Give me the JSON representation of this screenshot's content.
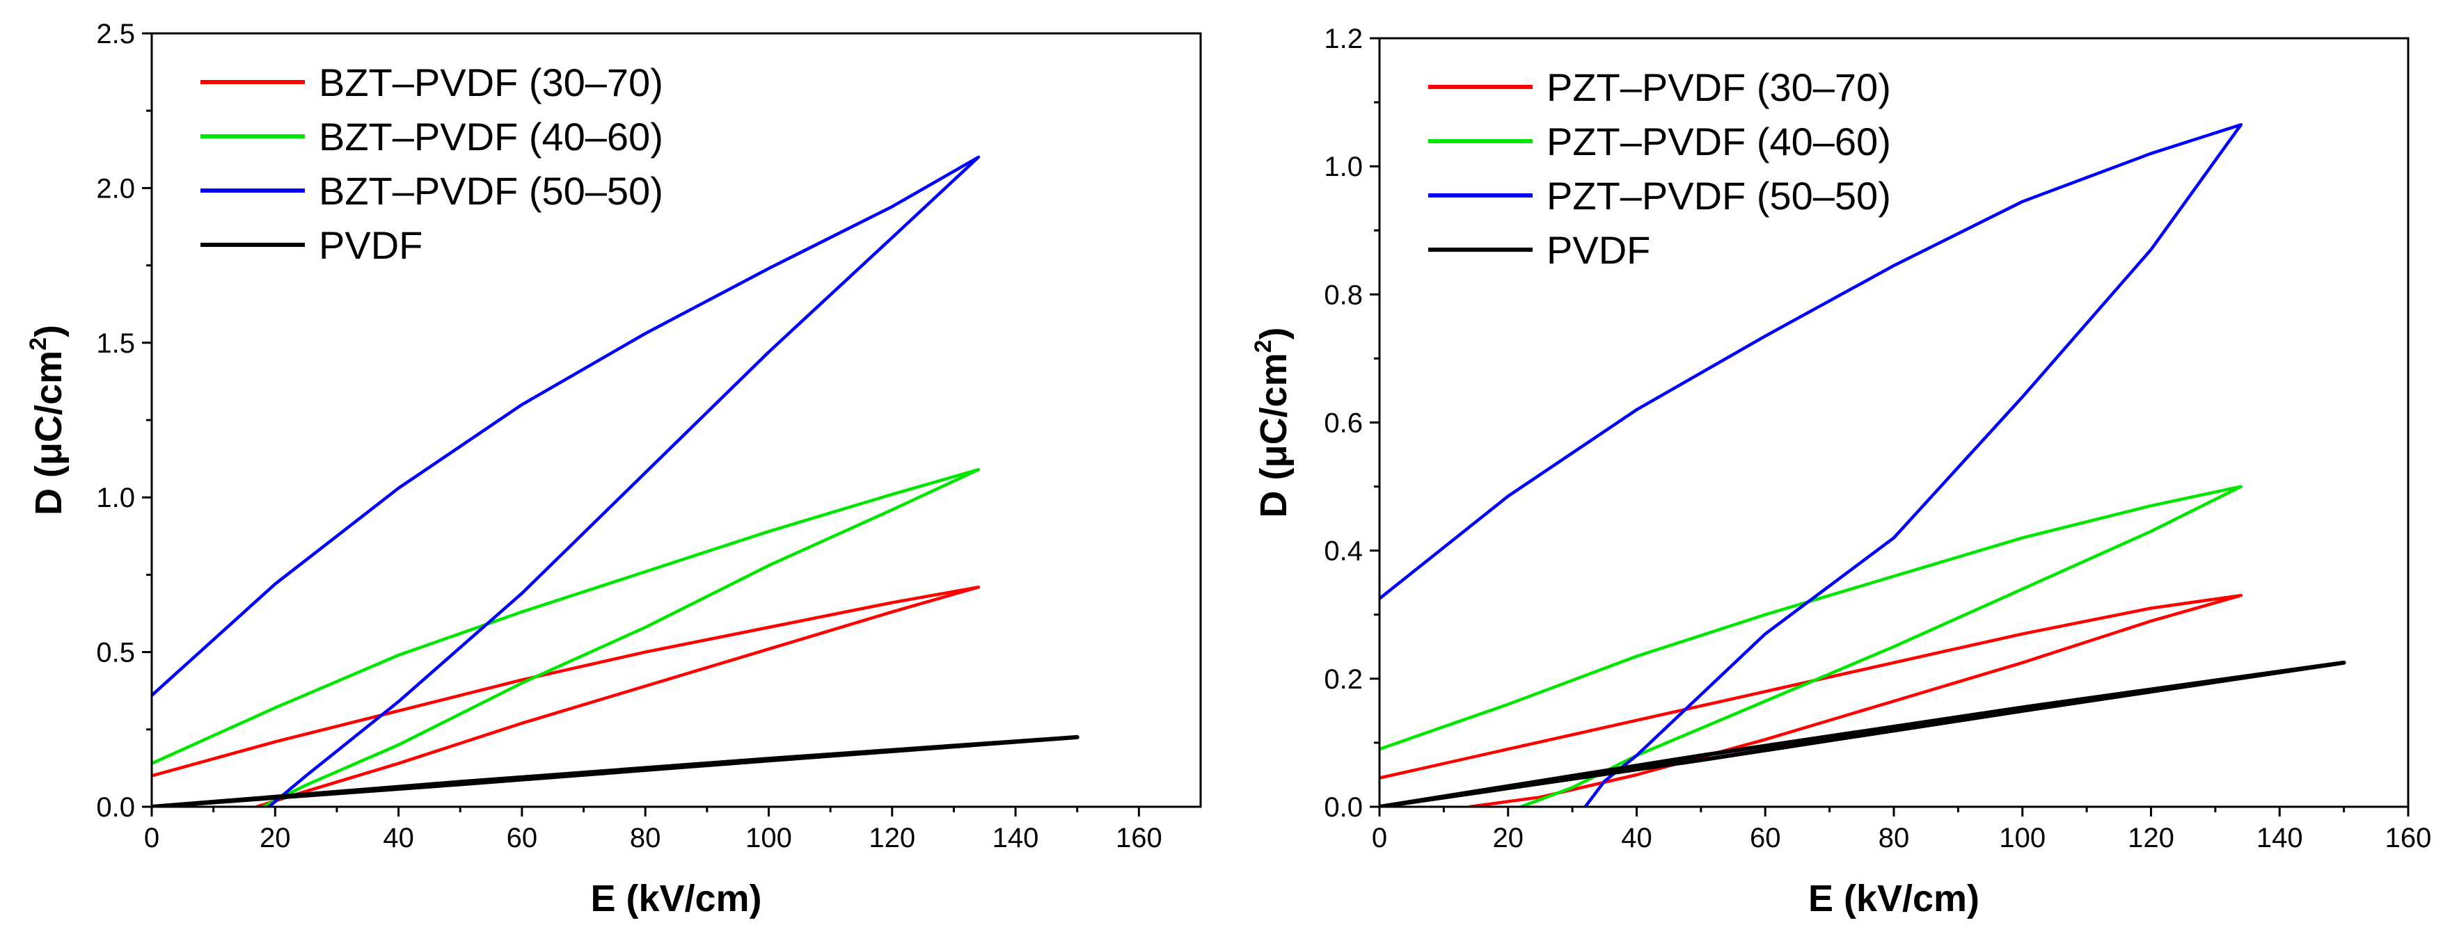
{
  "chart_data": [
    {
      "type": "line",
      "xlabel": "E (kV/cm)",
      "ylabel": "D (μC/cm²)",
      "ylabel_parts": {
        "main": "D (μC/cm",
        "sup": "2",
        "close": ")"
      },
      "xlim": [
        0,
        170
      ],
      "ylim": [
        0,
        2.5
      ],
      "x_ticks": [
        0,
        20,
        40,
        60,
        80,
        100,
        120,
        140,
        160
      ],
      "y_ticks": [
        "0.0",
        "0.5",
        "1.0",
        "1.5",
        "2.0",
        "2.5"
      ],
      "legend_position": "top-left",
      "series": [
        {
          "name": "BZT–PVDF (30–70)",
          "color": "#ff0000",
          "upper": [
            [
              0,
              0.1
            ],
            [
              20,
              0.21
            ],
            [
              40,
              0.31
            ],
            [
              60,
              0.41
            ],
            [
              80,
              0.5
            ],
            [
              100,
              0.58
            ],
            [
              120,
              0.66
            ],
            [
              134,
              0.71
            ]
          ],
          "lower": [
            [
              134,
              0.71
            ],
            [
              120,
              0.63
            ],
            [
              100,
              0.51
            ],
            [
              80,
              0.39
            ],
            [
              60,
              0.27
            ],
            [
              40,
              0.14
            ],
            [
              25,
              0.05
            ],
            [
              17,
              0.0
            ]
          ]
        },
        {
          "name": "BZT–PVDF (40–60)",
          "color": "#00e600",
          "upper": [
            [
              0,
              0.14
            ],
            [
              20,
              0.32
            ],
            [
              40,
              0.49
            ],
            [
              60,
              0.63
            ],
            [
              80,
              0.76
            ],
            [
              100,
              0.89
            ],
            [
              120,
              1.01
            ],
            [
              134,
              1.09
            ]
          ],
          "lower": [
            [
              134,
              1.09
            ],
            [
              120,
              0.96
            ],
            [
              100,
              0.78
            ],
            [
              80,
              0.58
            ],
            [
              60,
              0.4
            ],
            [
              40,
              0.2
            ],
            [
              25,
              0.07
            ],
            [
              18,
              0.0
            ]
          ]
        },
        {
          "name": "BZT–PVDF (50–50)",
          "color": "#0000ff",
          "upper": [
            [
              0,
              0.36
            ],
            [
              20,
              0.72
            ],
            [
              40,
              1.03
            ],
            [
              60,
              1.3
            ],
            [
              80,
              1.53
            ],
            [
              100,
              1.74
            ],
            [
              120,
              1.94
            ],
            [
              134,
              2.1
            ]
          ],
          "lower": [
            [
              134,
              2.1
            ],
            [
              120,
              1.84
            ],
            [
              100,
              1.47
            ],
            [
              80,
              1.08
            ],
            [
              60,
              0.69
            ],
            [
              40,
              0.34
            ],
            [
              25,
              0.1
            ],
            [
              19,
              0.0
            ]
          ]
        },
        {
          "name": "PVDF",
          "color": "#000000",
          "upper": [
            [
              0,
              0.0
            ],
            [
              50,
              0.08
            ],
            [
              100,
              0.155
            ],
            [
              150,
              0.225
            ]
          ],
          "lower": [
            [
              150,
              0.225
            ],
            [
              100,
              0.15
            ],
            [
              50,
              0.073
            ],
            [
              0,
              0.0
            ]
          ]
        }
      ]
    },
    {
      "type": "line",
      "xlabel": "E (kV/cm)",
      "ylabel": "D (μC/cm²)",
      "ylabel_parts": {
        "main": "D (μC/cm",
        "sup": "2",
        "close": ")"
      },
      "xlim": [
        0,
        160
      ],
      "ylim": [
        0,
        1.2
      ],
      "x_ticks": [
        0,
        20,
        40,
        60,
        80,
        100,
        120,
        140,
        160
      ],
      "y_ticks": [
        "0.0",
        "0.2",
        "0.4",
        "0.6",
        "0.8",
        "1.0",
        "1.2"
      ],
      "legend_position": "top-left",
      "series": [
        {
          "name": "PZT–PVDF (30–70)",
          "color": "#ff0000",
          "upper": [
            [
              0,
              0.045
            ],
            [
              20,
              0.09
            ],
            [
              40,
              0.135
            ],
            [
              60,
              0.18
            ],
            [
              80,
              0.225
            ],
            [
              100,
              0.27
            ],
            [
              120,
              0.31
            ],
            [
              134,
              0.33
            ]
          ],
          "lower": [
            [
              134,
              0.33
            ],
            [
              120,
              0.29
            ],
            [
              100,
              0.225
            ],
            [
              80,
              0.165
            ],
            [
              60,
              0.105
            ],
            [
              40,
              0.05
            ],
            [
              25,
              0.015
            ],
            [
              14,
              0.0
            ]
          ]
        },
        {
          "name": "PZT–PVDF (40–60)",
          "color": "#00e600",
          "upper": [
            [
              0,
              0.09
            ],
            [
              20,
              0.16
            ],
            [
              40,
              0.235
            ],
            [
              60,
              0.3
            ],
            [
              80,
              0.36
            ],
            [
              100,
              0.42
            ],
            [
              120,
              0.47
            ],
            [
              134,
              0.5
            ]
          ],
          "lower": [
            [
              134,
              0.5
            ],
            [
              120,
              0.43
            ],
            [
              100,
              0.34
            ],
            [
              80,
              0.25
            ],
            [
              60,
              0.165
            ],
            [
              40,
              0.08
            ],
            [
              30,
              0.03
            ],
            [
              22,
              0.0
            ]
          ]
        },
        {
          "name": "PZT–PVDF (50–50)",
          "color": "#0000ff",
          "upper": [
            [
              0,
              0.325
            ],
            [
              20,
              0.485
            ],
            [
              40,
              0.62
            ],
            [
              60,
              0.735
            ],
            [
              80,
              0.845
            ],
            [
              100,
              0.945
            ],
            [
              120,
              1.02
            ],
            [
              134,
              1.065
            ]
          ],
          "lower": [
            [
              134,
              1.065
            ],
            [
              120,
              0.87
            ],
            [
              100,
              0.64
            ],
            [
              80,
              0.42
            ],
            [
              60,
              0.27
            ],
            [
              40,
              0.08
            ],
            [
              35,
              0.04
            ],
            [
              32,
              0.0
            ]
          ]
        },
        {
          "name": "PVDF",
          "color": "#000000",
          "upper": [
            [
              0,
              0.0
            ],
            [
              50,
              0.08
            ],
            [
              100,
              0.155
            ],
            [
              150,
              0.225
            ]
          ],
          "lower": [
            [
              150,
              0.225
            ],
            [
              100,
              0.15
            ],
            [
              50,
              0.073
            ],
            [
              0,
              0.0
            ]
          ]
        }
      ]
    }
  ]
}
